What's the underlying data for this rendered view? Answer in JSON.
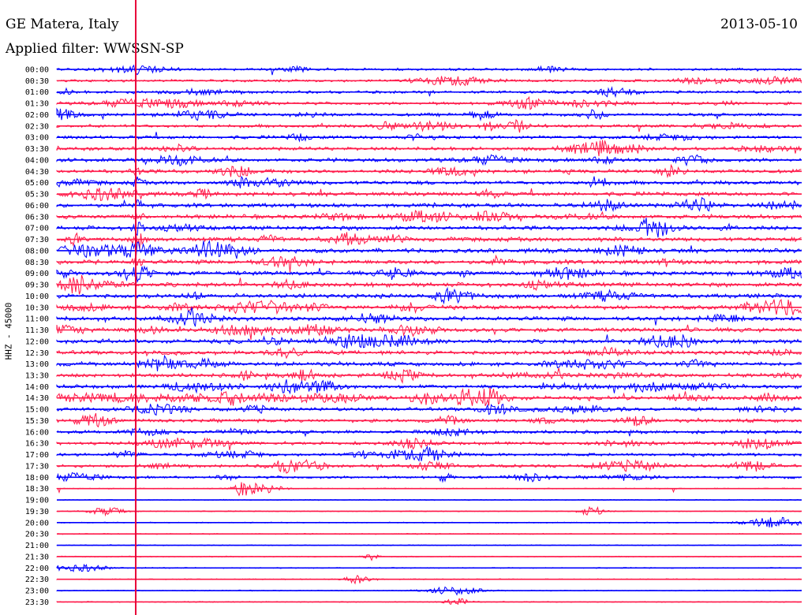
{
  "header": {
    "station": "GE Matera, Italy",
    "date": "2013-05-10",
    "filter": "Applied filter: WWSSN-SP"
  },
  "colors": {
    "blue": "#0000ff",
    "red": "#ff1a4a",
    "marker": "#e8003a"
  },
  "chart_data": {
    "type": "line",
    "title": "GE Matera, Italy",
    "date": "2013-05-10",
    "ylabel": "HHZ - 45000",
    "row_labels": [
      "00:00",
      "00:30",
      "01:00",
      "01:30",
      "02:00",
      "02:30",
      "03:00",
      "03:30",
      "04:00",
      "04:30",
      "05:00",
      "05:30",
      "06:00",
      "06:30",
      "07:00",
      "07:30",
      "08:00",
      "08:30",
      "09:00",
      "09:30",
      "10:00",
      "10:30",
      "11:00",
      "11:30",
      "12:00",
      "12:30",
      "13:00",
      "13:30",
      "14:00",
      "14:30",
      "15:00",
      "15:30",
      "16:00",
      "16:30",
      "17:00",
      "17:30",
      "18:00",
      "18:30",
      "19:00",
      "19:30",
      "20:00",
      "20:30",
      "21:00",
      "21:30",
      "22:00",
      "22:30",
      "23:00",
      "23:30"
    ],
    "row_interval_minutes": 30,
    "series_colors": [
      "blue",
      "red"
    ],
    "event_marker_note": "vertical line at approx. 3.3 min past each row start"
  }
}
